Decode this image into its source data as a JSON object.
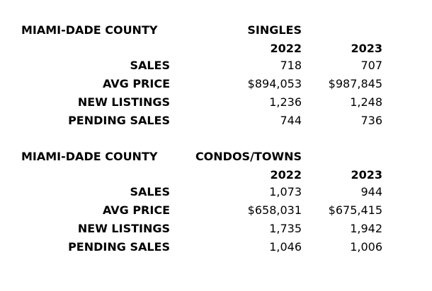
{
  "tables": [
    {
      "title": "MIAMI-DADE COUNTY",
      "section": "SINGLES",
      "years": [
        "2022",
        "2023"
      ],
      "rows": [
        {
          "label": "SALES",
          "values": [
            "718",
            "707"
          ]
        },
        {
          "label": "AVG PRICE",
          "values": [
            "$894,053",
            "$987,845"
          ]
        },
        {
          "label": "NEW LISTINGS",
          "values": [
            "1,236",
            "1,248"
          ]
        },
        {
          "label": "PENDING SALES",
          "values": [
            "744",
            "736"
          ]
        }
      ]
    },
    {
      "title": "MIAMI-DADE COUNTY",
      "section": "CONDOS/TOWNS",
      "years": [
        "2022",
        "2023"
      ],
      "rows": [
        {
          "label": "SALES",
          "values": [
            "1,073",
            "944"
          ]
        },
        {
          "label": "AVG PRICE",
          "values": [
            "$658,031",
            "$675,415"
          ]
        },
        {
          "label": "NEW LISTINGS",
          "values": [
            "1,735",
            "1,942"
          ]
        },
        {
          "label": "PENDING SALES",
          "values": [
            "1,046",
            "1,006"
          ]
        }
      ]
    }
  ]
}
